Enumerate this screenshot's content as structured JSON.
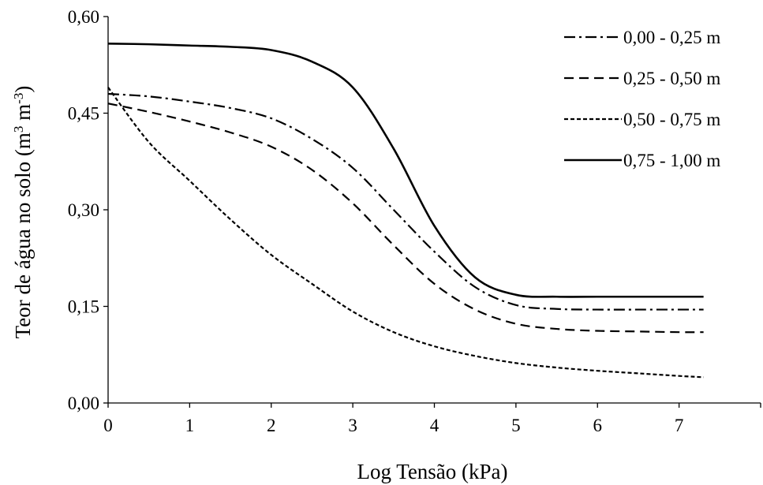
{
  "chart_data": {
    "type": "line",
    "title": "",
    "xlabel": "Log Tensão (kPa)",
    "ylabel_main": "Teor de água no solo (m",
    "ylabel_sup1": "3",
    "ylabel_mid": " m",
    "ylabel_sup2": "-3",
    "ylabel_end": ")",
    "xlim": [
      0,
      8
    ],
    "ylim": [
      0,
      0.6
    ],
    "x_ticks": [
      "0",
      "1",
      "2",
      "3",
      "4",
      "5",
      "6",
      "7"
    ],
    "y_ticks": [
      "0,00",
      "0,15",
      "0,30",
      "0,45",
      "0,60"
    ],
    "legend_position": "top-right",
    "series": [
      {
        "name": "0,00 - 0,25 m",
        "style": "dashdot",
        "x": [
          0,
          0.5,
          1,
          1.5,
          2,
          2.5,
          3,
          3.5,
          4,
          4.5,
          5,
          5.5,
          6,
          6.5,
          7,
          7.3
        ],
        "y": [
          0.48,
          0.476,
          0.468,
          0.458,
          0.442,
          0.41,
          0.365,
          0.3,
          0.235,
          0.18,
          0.152,
          0.146,
          0.145,
          0.145,
          0.145,
          0.145
        ]
      },
      {
        "name": "0,25 - 0,50 m",
        "style": "dashed",
        "x": [
          0,
          0.5,
          1,
          1.5,
          2,
          2.5,
          3,
          3.5,
          4,
          4.5,
          5,
          5.5,
          6,
          6.5,
          7,
          7.3
        ],
        "y": [
          0.465,
          0.452,
          0.437,
          0.42,
          0.398,
          0.362,
          0.31,
          0.245,
          0.185,
          0.145,
          0.123,
          0.115,
          0.112,
          0.111,
          0.11,
          0.11
        ]
      },
      {
        "name": "0,50 - 0,75 m",
        "style": "dotted",
        "x": [
          0,
          0.5,
          1,
          1.5,
          2,
          2.5,
          3,
          3.5,
          4,
          4.5,
          5,
          5.5,
          6,
          6.5,
          7,
          7.3
        ],
        "y": [
          0.49,
          0.405,
          0.345,
          0.285,
          0.23,
          0.185,
          0.142,
          0.11,
          0.088,
          0.073,
          0.062,
          0.055,
          0.05,
          0.046,
          0.042,
          0.04
        ]
      },
      {
        "name": "0,75 - 1,00 m",
        "style": "solid",
        "x": [
          0,
          0.5,
          1,
          1.5,
          2,
          2.5,
          3,
          3.5,
          4,
          4.5,
          5,
          5.5,
          6,
          6.5,
          7,
          7.3
        ],
        "y": [
          0.558,
          0.557,
          0.555,
          0.553,
          0.548,
          0.53,
          0.49,
          0.395,
          0.275,
          0.195,
          0.168,
          0.165,
          0.165,
          0.165,
          0.165,
          0.165
        ]
      }
    ]
  }
}
